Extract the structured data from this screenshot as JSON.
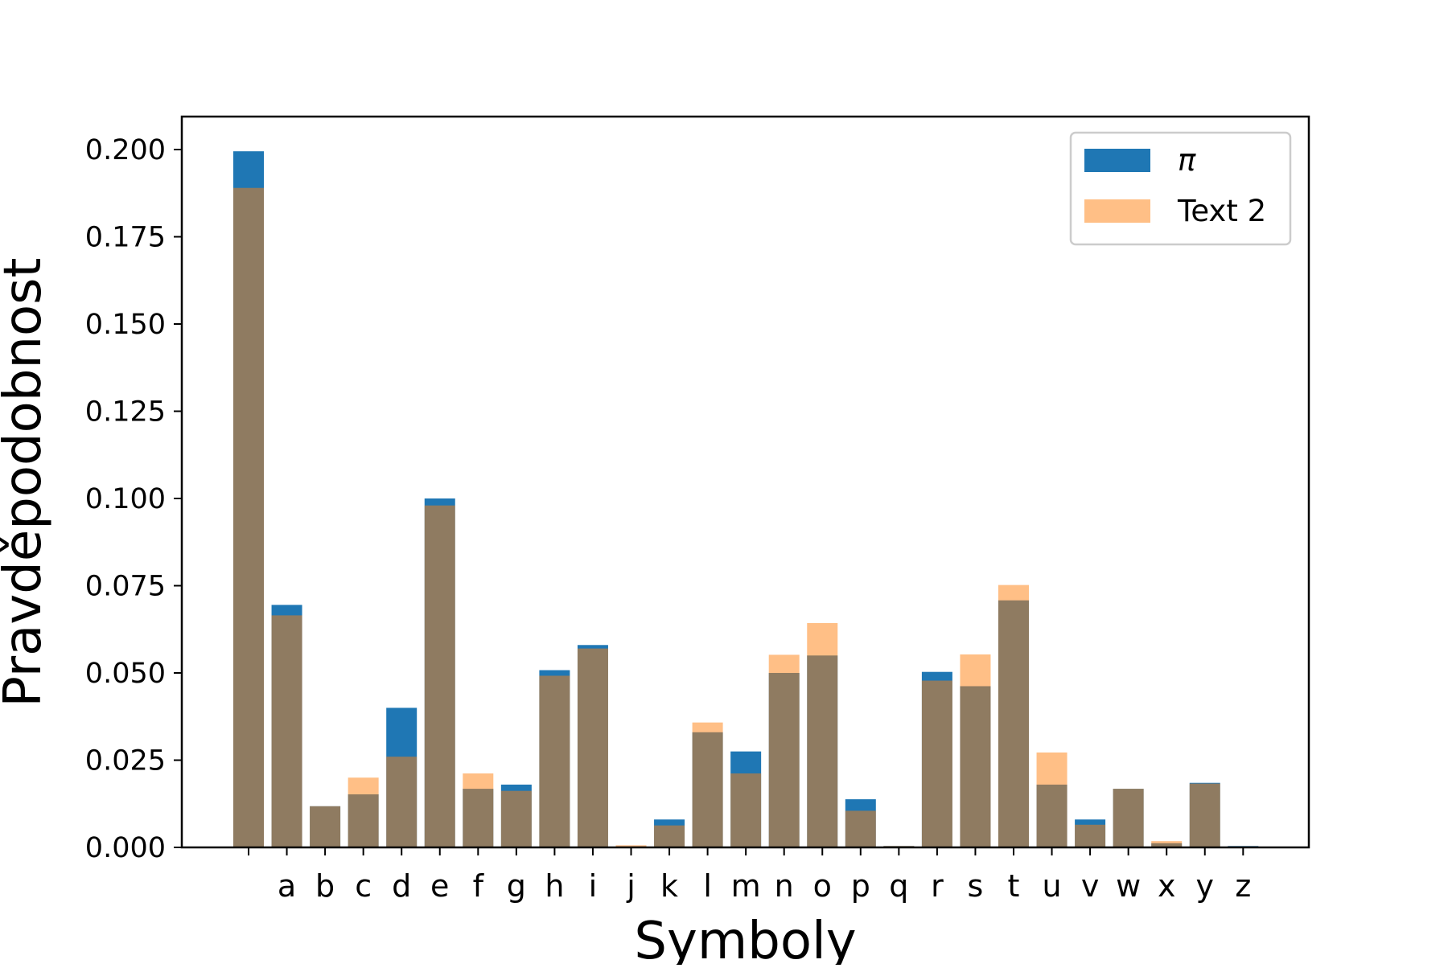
{
  "chart_data": {
    "type": "bar",
    "xlabel": "Symboly",
    "ylabel": "Pravděpodobnost",
    "ylim": [
      0,
      0.21
    ],
    "yticks": [
      0.0,
      0.025,
      0.05,
      0.075,
      0.1,
      0.125,
      0.15,
      0.175,
      0.2
    ],
    "ytick_labels": [
      "0.000",
      "0.025",
      "0.050",
      "0.075",
      "0.100",
      "0.125",
      "0.150",
      "0.175",
      "0.200"
    ],
    "categories": [
      " ",
      "a",
      "b",
      "c",
      "d",
      "e",
      "f",
      "g",
      "h",
      "i",
      "j",
      "k",
      "l",
      "m",
      "n",
      "o",
      "p",
      "q",
      "r",
      "s",
      "t",
      "u",
      "v",
      "w",
      "x",
      "y",
      "z"
    ],
    "series": [
      {
        "name": "π",
        "color": "#1f77b4",
        "opacity": 1.0,
        "values": [
          0.1995,
          0.0695,
          0.0118,
          0.0152,
          0.04,
          0.1,
          0.0168,
          0.018,
          0.0508,
          0.058,
          0.0003,
          0.008,
          0.033,
          0.0275,
          0.05,
          0.055,
          0.0138,
          0.0004,
          0.0503,
          0.0462,
          0.0708,
          0.018,
          0.008,
          0.0168,
          0.0012,
          0.0185,
          0.0004
        ]
      },
      {
        "name": "Text 2",
        "color": "#ff7f0e",
        "opacity": 0.5,
        "values": [
          0.189,
          0.0665,
          0.0118,
          0.02,
          0.026,
          0.098,
          0.0212,
          0.0162,
          0.0492,
          0.057,
          0.0006,
          0.0063,
          0.0358,
          0.0212,
          0.0552,
          0.0643,
          0.0105,
          0.0004,
          0.0478,
          0.0553,
          0.0752,
          0.0272,
          0.0065,
          0.0168,
          0.0018,
          0.0183,
          0.0003
        ]
      }
    ],
    "legend": {
      "placement": "top-right",
      "entries": [
        "π",
        "Text 2"
      ]
    },
    "grid": false
  }
}
